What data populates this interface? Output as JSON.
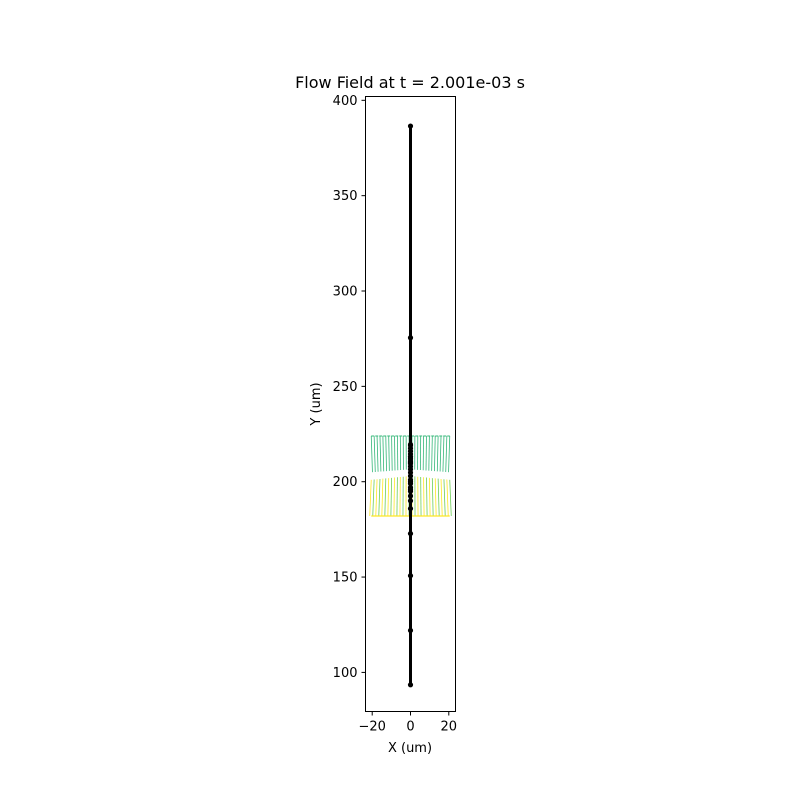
{
  "chart_data": {
    "type": "line",
    "title": "Flow Field at t = 2.001e-03 s",
    "xlabel": "X (um)",
    "ylabel": "Y (um)",
    "xlim": [
      -23.5,
      23.5
    ],
    "ylim": [
      79.5,
      402
    ],
    "xticks": [
      -20,
      0,
      20
    ],
    "xtick_labels": [
      "−20",
      "0",
      "20"
    ],
    "yticks": [
      100,
      150,
      200,
      250,
      300,
      350,
      400
    ],
    "ytick_labels": [
      "100",
      "150",
      "200",
      "250",
      "300",
      "350",
      "400"
    ],
    "grid": false,
    "legend": "none",
    "colors": {
      "line": "#000000",
      "flow_upper": "#35b779",
      "flow_lower": "#fde725",
      "flow_mid": "#6ece58",
      "axes": "#000000"
    },
    "series": [
      {
        "kind": "vertical_line_with_markers",
        "x": [
          0,
          0,
          0,
          0,
          0,
          0,
          0,
          0,
          0,
          0,
          0,
          0,
          0,
          0,
          0,
          0,
          0,
          0,
          0,
          0,
          0,
          0,
          0,
          0,
          0,
          0,
          0,
          0,
          0,
          0
        ],
        "y": [
          93.5,
          122,
          150.7,
          172.8,
          185.9,
          190,
          192.5,
          195,
          197,
          199,
          201,
          203,
          204.8,
          206.5,
          208,
          209.5,
          210.8,
          212,
          213.2,
          214.5,
          216,
          217.5,
          219,
          219.5,
          275.5,
          386.5,
          196,
          200,
          210,
          213
        ]
      }
    ],
    "flow_field": {
      "description_free": true,
      "x_range": [
        -20.5,
        20.5
      ],
      "upper_band_y": [
        205,
        224
      ],
      "lower_band_y": [
        182,
        203
      ],
      "columns": 28
    }
  }
}
